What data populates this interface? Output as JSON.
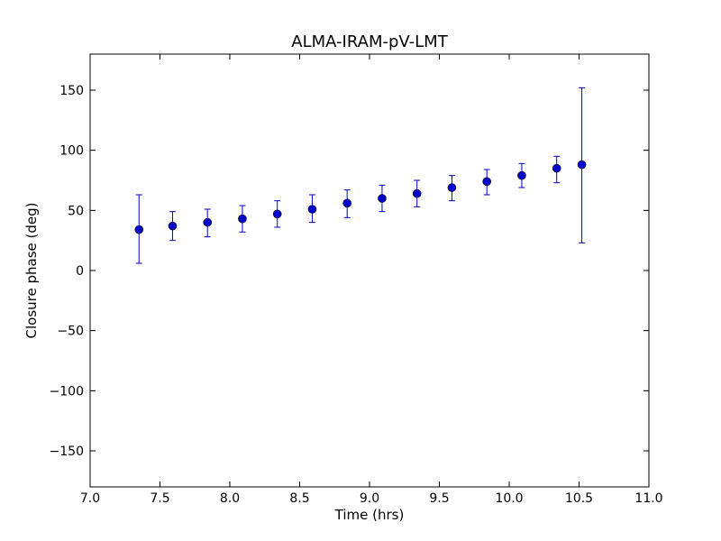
{
  "chart_data": {
    "type": "scatter",
    "title": "ALMA-IRAM-pV-LMT",
    "xlabel": "Time (hrs)",
    "ylabel": "Closure phase (deg)",
    "xlim": [
      7.0,
      11.0
    ],
    "ylim": [
      -180,
      180
    ],
    "xticks": [
      7.0,
      7.5,
      8.0,
      8.5,
      9.0,
      9.5,
      10.0,
      10.5,
      11.0
    ],
    "xtick_labels": [
      "7.0",
      "7.5",
      "8.0",
      "8.5",
      "9.0",
      "9.5",
      "10.0",
      "10.5",
      "11.0"
    ],
    "yticks": [
      150,
      100,
      50,
      0,
      -50,
      -100,
      -150
    ],
    "ytick_labels": [
      "150",
      "100",
      "50",
      "0",
      "−50",
      "−100",
      "−150"
    ],
    "grid": false,
    "series": [
      {
        "color": "#0000cc",
        "marker": "circle",
        "points": [
          {
            "x": 7.35,
            "y": 34,
            "err_low": 6,
            "err_high": 63
          },
          {
            "x": 7.59,
            "y": 37,
            "err_low": 25,
            "err_high": 49
          },
          {
            "x": 7.84,
            "y": 40,
            "err_low": 28,
            "err_high": 51
          },
          {
            "x": 8.09,
            "y": 43,
            "err_low": 32,
            "err_high": 54
          },
          {
            "x": 8.34,
            "y": 47,
            "err_low": 36,
            "err_high": 58
          },
          {
            "x": 8.59,
            "y": 51,
            "err_low": 40,
            "err_high": 63
          },
          {
            "x": 8.84,
            "y": 56,
            "err_low": 44,
            "err_high": 67
          },
          {
            "x": 9.09,
            "y": 60,
            "err_low": 49,
            "err_high": 71
          },
          {
            "x": 9.34,
            "y": 64,
            "err_low": 53,
            "err_high": 75
          },
          {
            "x": 9.59,
            "y": 69,
            "err_low": 58,
            "err_high": 79
          },
          {
            "x": 9.84,
            "y": 74,
            "err_low": 63,
            "err_high": 84
          },
          {
            "x": 10.09,
            "y": 79,
            "err_low": 69,
            "err_high": 89
          },
          {
            "x": 10.34,
            "y": 85,
            "err_low": 73,
            "err_high": 95
          },
          {
            "x": 10.52,
            "y": 88,
            "err_low": 23,
            "err_high": 152
          }
        ]
      }
    ]
  }
}
